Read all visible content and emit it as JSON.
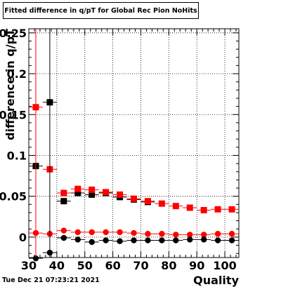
{
  "canvas": {
    "title": "Fitted difference in q/pT for Global Rec Pion NoHits",
    "timestamp": "Tue Dec 21 07:23:21 2021"
  },
  "chart_data": {
    "type": "scatter",
    "title": "Fitted difference in q/pT for Global Rec Pion NoHits",
    "xlabel": "Quality",
    "ylabel": "difference in q/pT",
    "xlim": [
      30,
      105
    ],
    "ylim": [
      -0.025,
      0.255
    ],
    "x_ticks": [
      30,
      40,
      50,
      60,
      70,
      80,
      90,
      100
    ],
    "y_ticks": [
      0,
      0.05,
      0.1,
      0.15,
      0.2,
      0.25
    ],
    "x_tick_labels": [
      "30",
      "40",
      "50",
      "60",
      "70",
      "80",
      "90",
      "100"
    ],
    "y_tick_labels": [
      "0",
      "0.05",
      "0.1",
      "0.15",
      "0.2",
      "0.25"
    ],
    "grid": true,
    "series": [
      {
        "color": "#000000",
        "marker": "square",
        "x": [
          32.5,
          37.5,
          42.5,
          47.5,
          52.5,
          57.5,
          62.5,
          67.5,
          72.5
        ],
        "y": [
          0.087,
          0.165,
          0.044,
          0.054,
          0.052,
          0.054,
          0.049,
          0.046,
          0.043
        ]
      },
      {
        "color": "#ff0000",
        "marker": "square",
        "x": [
          32.5,
          37.5,
          42.5,
          47.5,
          52.5,
          57.5,
          62.5,
          67.5,
          72.5,
          77.5,
          82.5,
          87.5,
          92.5,
          97.5,
          102.5
        ],
        "y": [
          0.159,
          0.083,
          0.054,
          0.059,
          0.058,
          0.055,
          0.052,
          0.047,
          0.044,
          0.041,
          0.038,
          0.036,
          0.033,
          0.034,
          0.034
        ]
      },
      {
        "color": "#ff0000",
        "marker": "circle",
        "x": [
          32.5,
          37.5,
          42.5,
          47.5,
          52.5,
          57.5,
          62.5,
          67.5,
          72.5,
          77.5,
          82.5,
          87.5,
          92.5,
          97.5,
          102.5
        ],
        "y": [
          0.005,
          0.004,
          0.008,
          0.006,
          0.006,
          0.006,
          0.006,
          0.005,
          0.004,
          0.004,
          0.003,
          0.003,
          0.003,
          0.004,
          0.004
        ]
      },
      {
        "color": "#000000",
        "marker": "circle",
        "x": [
          32.5,
          37.5,
          42.5,
          47.5,
          52.5,
          57.5,
          62.5,
          67.5,
          72.5,
          77.5,
          82.5,
          87.5,
          92.5,
          97.5,
          102.5
        ],
        "y": [
          -0.026,
          -0.019,
          -0.001,
          -0.003,
          -0.006,
          -0.004,
          -0.005,
          -0.004,
          -0.004,
          -0.004,
          -0.004,
          -0.003,
          -0.003,
          -0.004,
          -0.004
        ]
      }
    ]
  }
}
